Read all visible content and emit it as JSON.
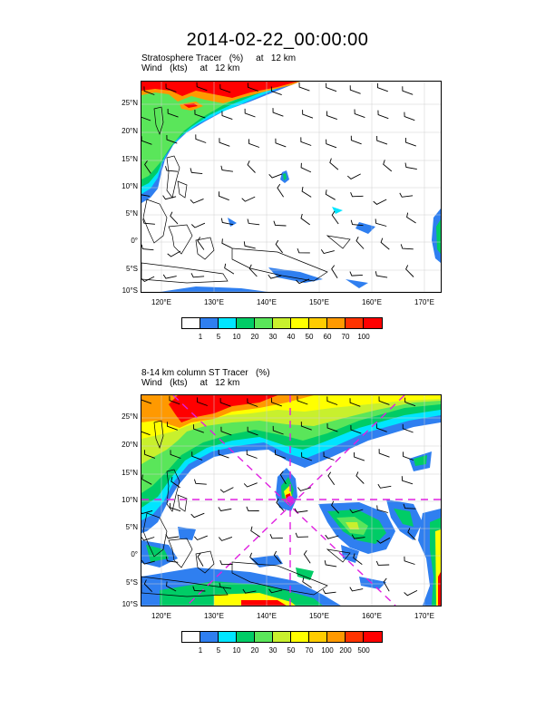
{
  "title": "2014-02-22_00:00:00",
  "panels": [
    {
      "label_line1": "Stratosphere Tracer   (%)     at   12 km",
      "label_line2": "Wind   (kts)     at   12 km",
      "colorbar": {
        "colors": [
          "#ffffff",
          "#2f7ff0",
          "#00e5ff",
          "#00cc66",
          "#5ae65a",
          "#c8f02d",
          "#ffff00",
          "#ffcc00",
          "#ff9900",
          "#ff3300",
          "#ff0000"
        ],
        "labels": [
          "1",
          "5",
          "10",
          "20",
          "30",
          "40",
          "50",
          "60",
          "70",
          "100"
        ]
      },
      "has_storm": false
    },
    {
      "label_line1": "8-14 km column ST Tracer   (%)",
      "label_line2": "Wind   (kts)     at   12 km",
      "colorbar": {
        "colors": [
          "#ffffff",
          "#2f7ff0",
          "#00e5ff",
          "#00cc66",
          "#5ae65a",
          "#c8f02d",
          "#ffff00",
          "#ffcc00",
          "#ff9900",
          "#ff3300",
          "#ff0000"
        ],
        "labels": [
          "1",
          "5",
          "10",
          "20",
          "30",
          "50",
          "70",
          "100",
          "200",
          "500"
        ]
      },
      "has_storm": true
    }
  ],
  "axes": {
    "lat_labels": [
      "25°N",
      "20°N",
      "15°N",
      "10°N",
      "5°N",
      "0°",
      "5°S",
      "10°S"
    ],
    "lon_labels": [
      "120°E",
      "130°E",
      "140°E",
      "150°E",
      "160°E",
      "170°E"
    ]
  }
}
